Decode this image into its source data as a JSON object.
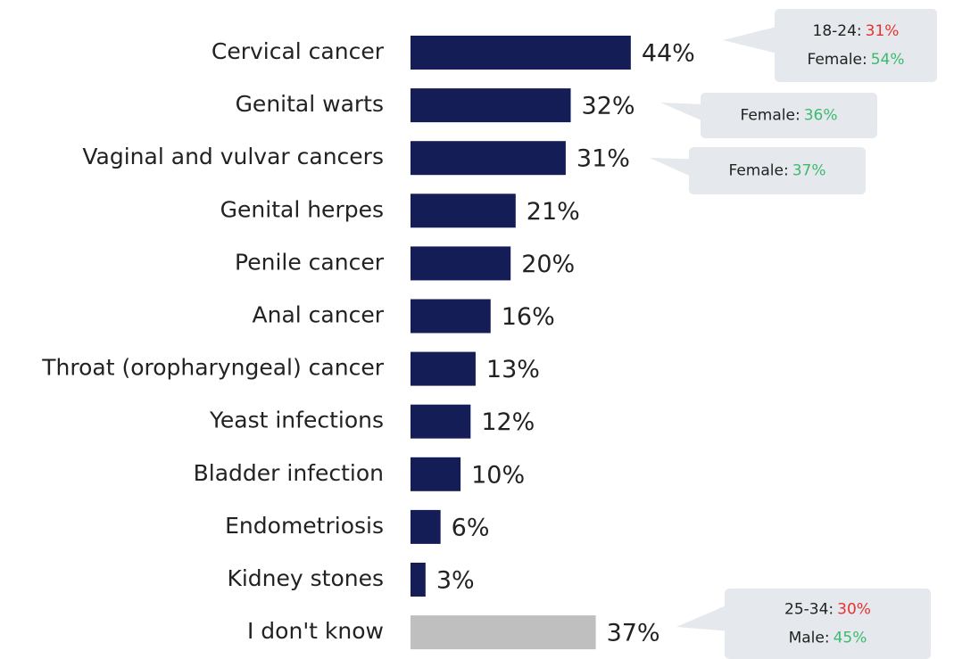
{
  "chart_data": {
    "type": "bar",
    "orientation": "horizontal",
    "categories": [
      "Cervical cancer",
      "Genital warts",
      "Vaginal and vulvar cancers",
      "Genital herpes",
      "Penile cancer",
      "Anal cancer",
      "Throat (oropharyngeal) cancer",
      "Yeast infections",
      "Bladder infection",
      "Endometriosis",
      "Kidney stones",
      "I don't know"
    ],
    "values": [
      44,
      32,
      31,
      21,
      20,
      16,
      13,
      12,
      10,
      6,
      3,
      37
    ],
    "value_labels": [
      "44%",
      "32%",
      "31%",
      "21%",
      "20%",
      "16%",
      "13%",
      "12%",
      "10%",
      "6%",
      "3%",
      "37%"
    ],
    "colors": [
      "#141d55",
      "#141d55",
      "#141d55",
      "#141d55",
      "#141d55",
      "#141d55",
      "#141d55",
      "#141d55",
      "#141d55",
      "#141d55",
      "#141d55",
      "#bfbfbf"
    ],
    "annotations": [
      {
        "lines": [
          {
            "label": "18-24:",
            "value": "31%",
            "color": "#e8312f"
          },
          {
            "label": "Female:",
            "value": "54%",
            "color": "#3dba6e"
          }
        ]
      },
      {
        "lines": [
          {
            "label": "Female:",
            "value": "36%",
            "color": "#3dba6e"
          }
        ]
      },
      {
        "lines": [
          {
            "label": "Female:",
            "value": "37%",
            "color": "#3dba6e"
          }
        ]
      },
      {
        "lines": [
          {
            "label": "25-34:",
            "value": "30%",
            "color": "#e8312f"
          },
          {
            "label": "Male:",
            "value": "45%",
            "color": "#3dba6e"
          }
        ]
      }
    ]
  }
}
